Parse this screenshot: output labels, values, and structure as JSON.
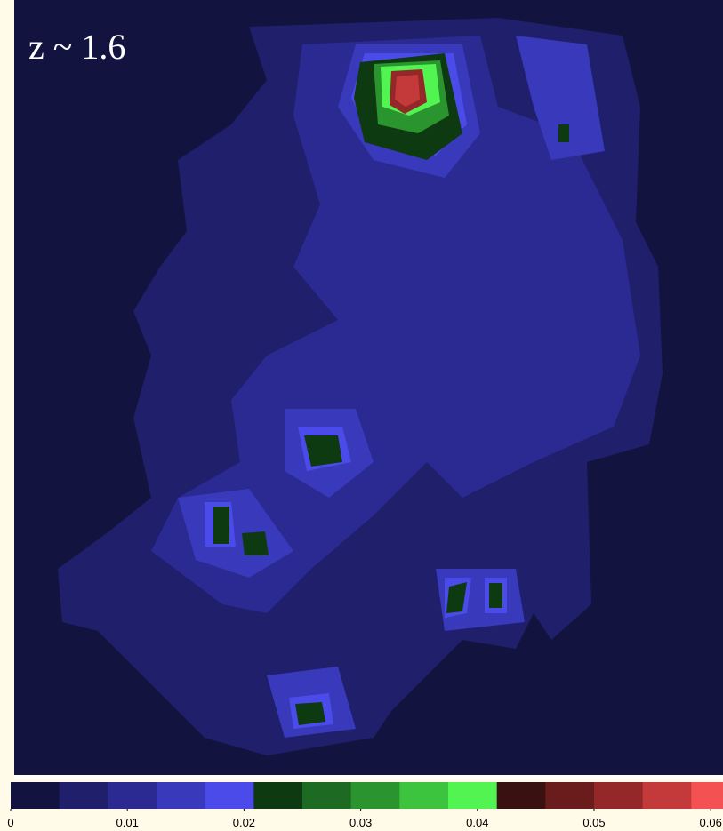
{
  "chart_data": {
    "type": "heatmap",
    "title": "z ~ 1.6",
    "colorbar": {
      "colors": [
        "#13133f",
        "#1f1f6c",
        "#2a2a92",
        "#3939bb",
        "#4b4bea",
        "#0e3a12",
        "#1d6b22",
        "#2a952e",
        "#3dc43f",
        "#52f452",
        "#3a1111",
        "#6a1c1c",
        "#942828",
        "#c43a3a",
        "#f45252"
      ],
      "xlim": [
        0,
        0.0625
      ],
      "xticks": [
        0,
        0.01,
        0.02,
        0.03,
        0.04,
        0.05,
        0.06
      ]
    }
  }
}
